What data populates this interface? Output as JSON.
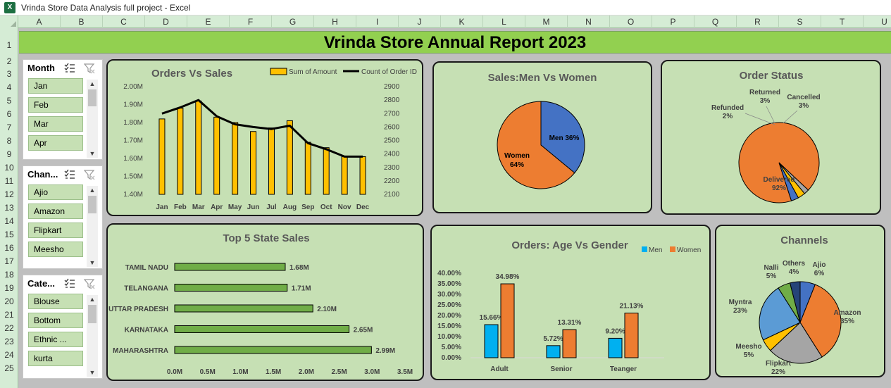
{
  "window": {
    "title": "Vrinda Store Data Analysis full project - Excel",
    "app_icon": "X"
  },
  "columns": [
    "A",
    "B",
    "C",
    "D",
    "E",
    "F",
    "G",
    "H",
    "I",
    "J",
    "K",
    "L",
    "M",
    "N",
    "O",
    "P",
    "Q",
    "R",
    "S",
    "T",
    "U"
  ],
  "rows": [
    "1",
    "2",
    "3",
    "4",
    "5",
    "6",
    "7",
    "8",
    "9",
    "10",
    "11",
    "12",
    "13",
    "14",
    "15",
    "16",
    "17",
    "18",
    "19",
    "20",
    "21",
    "22",
    "23",
    "24",
    "25"
  ],
  "report_title": "Vrinda Store Annual Report 2023",
  "slicers": [
    {
      "label": "Month",
      "items": [
        "Jan",
        "Feb",
        "Mar",
        "Apr"
      ]
    },
    {
      "label": "Chan...",
      "items": [
        "Ajio",
        "Amazon",
        "Flipkart",
        "Meesho"
      ]
    },
    {
      "label": "Cate...",
      "items": [
        "Blouse",
        "Bottom",
        "Ethnic ...",
        "kurta"
      ]
    }
  ],
  "colors": {
    "sheet_bg": "#bfbfbf",
    "banner": "#92d050",
    "panel": "#c6e0b4",
    "bar_orange": "#ffc000",
    "men_blue": "#4472c4",
    "women_orange": "#ed7d31",
    "age_men": "#00b0f0",
    "state_bar": "#70ad47"
  },
  "charts": {
    "orders_sales": {
      "chart_data": {
        "type": "bar",
        "title": "Orders Vs Sales",
        "categories": [
          "Jan",
          "Feb",
          "Mar",
          "Apr",
          "May",
          "Jun",
          "Jul",
          "Aug",
          "Sep",
          "Oct",
          "Nov",
          "Dec"
        ],
        "series": [
          {
            "name": "Sum of Amount",
            "type": "bar",
            "axis": "left",
            "values": [
              1.82,
              1.88,
              1.92,
              1.83,
              1.8,
              1.75,
              1.77,
              1.81,
              1.69,
              1.66,
              1.61,
              1.61
            ]
          },
          {
            "name": "Count of Order ID",
            "type": "line",
            "axis": "right",
            "values": [
              2700,
              2745,
              2800,
              2680,
              2620,
              2600,
              2585,
              2610,
              2480,
              2435,
              2380,
              2380
            ]
          }
        ],
        "y_left": {
          "range": [
            1.4,
            2.0
          ],
          "ticks": [
            "2.00M",
            "1.90M",
            "1.80M",
            "1.70M",
            "1.60M",
            "1.50M",
            "1.40M"
          ]
        },
        "y_right": {
          "range": [
            2100,
            2900
          ],
          "ticks": [
            "2900",
            "2800",
            "2700",
            "2600",
            "2500",
            "2400",
            "2300",
            "2200",
            "2100"
          ]
        },
        "legend_position": "top-right"
      }
    },
    "men_women": {
      "chart_data": {
        "type": "pie",
        "title": "Sales:Men Vs Women",
        "slices": [
          {
            "name": "Men",
            "value": 36,
            "label": "Men 36%"
          },
          {
            "name": "Women",
            "value": 64,
            "label": "Women",
            "pct": "64%"
          }
        ]
      }
    },
    "order_status": {
      "chart_data": {
        "type": "pie",
        "title": "Order Status",
        "slices": [
          {
            "name": "Delivered",
            "value": 92,
            "pct": "92%"
          },
          {
            "name": "Refunded",
            "value": 2,
            "pct": "2%"
          },
          {
            "name": "Returned",
            "value": 3,
            "pct": "3%"
          },
          {
            "name": "Cancelled",
            "value": 3,
            "pct": "3%"
          }
        ]
      }
    },
    "top_states": {
      "chart_data": {
        "type": "bar",
        "orientation": "horizontal",
        "title": "Top 5 State Sales",
        "categories": [
          "TAMIL NADU",
          "TELANGANA",
          "UTTAR PRADESH",
          "KARNATAKA",
          "MAHARASHTRA"
        ],
        "values": [
          1.68,
          1.71,
          2.1,
          2.65,
          2.99
        ],
        "value_labels": [
          "1.68M",
          "1.71M",
          "2.10M",
          "2.65M",
          "2.99M"
        ],
        "x_range": [
          0,
          3.5
        ],
        "x_ticks": [
          "0.0M",
          "0.5M",
          "1.0M",
          "1.5M",
          "2.0M",
          "2.5M",
          "3.0M",
          "3.5M"
        ]
      }
    },
    "age_gender": {
      "chart_data": {
        "type": "bar",
        "title": "Orders: Age Vs Gender",
        "categories": [
          "Adult",
          "Senior",
          "Teanger"
        ],
        "series": [
          {
            "name": "Men",
            "values": [
              15.66,
              5.72,
              9.2
            ],
            "labels": [
              "15.66%",
              "5.72%",
              "9.20%"
            ]
          },
          {
            "name": "Women",
            "values": [
              34.98,
              13.31,
              21.13
            ],
            "labels": [
              "34.98%",
              "13.31%",
              "21.13%"
            ]
          }
        ],
        "y_range": [
          0,
          40
        ],
        "y_ticks": [
          "40.00%",
          "35.00%",
          "30.00%",
          "25.00%",
          "20.00%",
          "15.00%",
          "10.00%",
          "5.00%",
          "0.00%"
        ],
        "legend_position": "top-right"
      }
    },
    "channels": {
      "chart_data": {
        "type": "pie",
        "title": "Channels",
        "slices": [
          {
            "name": "Ajio",
            "value": 6,
            "pct": "6%"
          },
          {
            "name": "Amazon",
            "value": 35,
            "pct": "35%"
          },
          {
            "name": "Flipkart",
            "value": 22,
            "pct": "22%"
          },
          {
            "name": "Meesho",
            "value": 5,
            "pct": "5%"
          },
          {
            "name": "Myntra",
            "value": 23,
            "pct": "23%"
          },
          {
            "name": "Nalli",
            "value": 5,
            "pct": "5%"
          },
          {
            "name": "Others",
            "value": 4,
            "pct": "4%"
          }
        ]
      }
    }
  }
}
